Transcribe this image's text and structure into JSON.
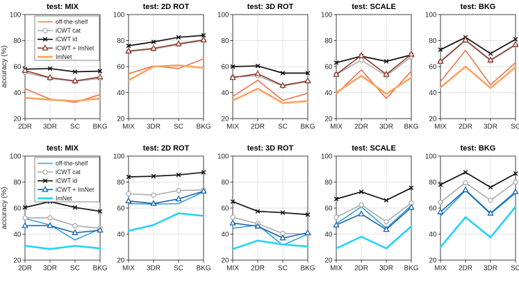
{
  "figure_name": "icwt-transfer-accuracy-figure",
  "axis": {
    "ylim": [
      20,
      100
    ],
    "yticks": [
      20,
      40,
      60,
      80,
      100
    ],
    "grid": true,
    "grid_color": "#e2e2e2",
    "box_color": "#3c3c3c",
    "tick_label_color": "#262626",
    "ylabel": "accuracy (%)"
  },
  "series_styles": {
    "row0": [
      {
        "name": "off-the-shelf",
        "color": "#F4714B",
        "marker": "none",
        "width": 1.6
      },
      {
        "name": "iCWT cat",
        "color": "#AAAAAA",
        "marker": "circle",
        "width": 1.6
      },
      {
        "name": "iCWT id",
        "color": "#111111",
        "marker": "x",
        "width": 1.7
      },
      {
        "name": "iCWT + ImNet",
        "color": "#8E3D2B",
        "marker": "triangle",
        "width": 1.6
      },
      {
        "name": "ImNet",
        "color": "#FCA35F",
        "marker": "none",
        "width": 2.6
      }
    ],
    "row1": [
      {
        "name": "off-the-shelf",
        "color": "#2E9FE0",
        "marker": "none",
        "width": 1.6
      },
      {
        "name": "iCWT cat",
        "color": "#AAAAAA",
        "marker": "circle",
        "width": 1.6
      },
      {
        "name": "iCWT id",
        "color": "#111111",
        "marker": "x",
        "width": 1.7
      },
      {
        "name": "iCWT + ImNet",
        "color": "#1A63AE",
        "marker": "triangle",
        "width": 1.6
      },
      {
        "name": "ImNet",
        "color": "#22D3F7",
        "marker": "none",
        "width": 2.6
      }
    ]
  },
  "chart_data": [
    {
      "type": "line",
      "row": 0,
      "col": 0,
      "title": "test: MIX",
      "ylabel": "accuracy (%)",
      "ylim": [
        20,
        100
      ],
      "grid": true,
      "legend": "inside-top",
      "categories": [
        "2DR",
        "3DR",
        "SC",
        "BKG"
      ],
      "series": [
        {
          "name": "off-the-shelf",
          "values": [
            43,
            35,
            32.5,
            38.5
          ]
        },
        {
          "name": "iCWT cat",
          "values": [
            55.5,
            51,
            48.5,
            51
          ]
        },
        {
          "name": "iCWT id",
          "values": [
            58,
            58.5,
            56,
            56.5
          ]
        },
        {
          "name": "iCWT + ImNet",
          "values": [
            57,
            51.5,
            49,
            52
          ]
        },
        {
          "name": "ImNet",
          "values": [
            36,
            34.5,
            33.5,
            35.5
          ]
        }
      ]
    },
    {
      "type": "line",
      "row": 0,
      "col": 1,
      "title": "test: 2D ROT",
      "ylabel": "",
      "ylim": [
        20,
        100
      ],
      "grid": true,
      "legend": "none",
      "categories": [
        "MIX",
        "3DR",
        "SC",
        "BKG"
      ],
      "series": [
        {
          "name": "off-the-shelf",
          "values": [
            54.5,
            60.5,
            58.5,
            66
          ]
        },
        {
          "name": "iCWT cat",
          "values": [
            71.5,
            73.5,
            77,
            80
          ]
        },
        {
          "name": "iCWT id",
          "values": [
            76,
            79,
            82.5,
            84
          ]
        },
        {
          "name": "iCWT + ImNet",
          "values": [
            72,
            74,
            77.5,
            80.5
          ]
        },
        {
          "name": "ImNet",
          "values": [
            49.5,
            60,
            61,
            59
          ]
        }
      ]
    },
    {
      "type": "line",
      "row": 0,
      "col": 2,
      "title": "test: 3D ROT",
      "ylabel": "",
      "ylim": [
        20,
        100
      ],
      "grid": true,
      "legend": "none",
      "categories": [
        "MIX",
        "2DR",
        "SC",
        "BKG"
      ],
      "series": [
        {
          "name": "off-the-shelf",
          "values": [
            37,
            49.5,
            34,
            39.5
          ]
        },
        {
          "name": "iCWT cat",
          "values": [
            52,
            53,
            45,
            48.5
          ]
        },
        {
          "name": "iCWT id",
          "values": [
            60,
            60.5,
            55,
            55
          ]
        },
        {
          "name": "iCWT + ImNet",
          "values": [
            51.5,
            54.5,
            45.5,
            49
          ]
        },
        {
          "name": "ImNet",
          "values": [
            34,
            43,
            32,
            33.5
          ]
        }
      ]
    },
    {
      "type": "line",
      "row": 0,
      "col": 3,
      "title": "test: SCALE",
      "ylabel": "",
      "ylim": [
        20,
        100
      ],
      "grid": true,
      "legend": "none",
      "categories": [
        "MIX",
        "2DR",
        "3DR",
        "BKG"
      ],
      "series": [
        {
          "name": "off-the-shelf",
          "values": [
            39,
            57.5,
            35.5,
            56.5
          ]
        },
        {
          "name": "iCWT cat",
          "values": [
            54,
            65,
            53,
            67.5
          ]
        },
        {
          "name": "iCWT id",
          "values": [
            63,
            68,
            64,
            69
          ]
        },
        {
          "name": "iCWT + ImNet",
          "values": [
            54,
            68.5,
            54,
            69.5
          ]
        },
        {
          "name": "ImNet",
          "values": [
            40,
            53,
            39,
            51.5
          ]
        }
      ]
    },
    {
      "type": "line",
      "row": 0,
      "col": 4,
      "title": "test: BKG",
      "ylabel": "",
      "ylim": [
        20,
        100
      ],
      "grid": true,
      "legend": "none",
      "categories": [
        "MIX",
        "2DR",
        "3DR",
        "SC"
      ],
      "series": [
        {
          "name": "off-the-shelf",
          "values": [
            48.5,
            72.5,
            46,
            63
          ]
        },
        {
          "name": "iCWT cat",
          "values": [
            63.5,
            80,
            64.5,
            76.5
          ]
        },
        {
          "name": "iCWT id",
          "values": [
            73,
            82.5,
            70,
            81
          ]
        },
        {
          "name": "iCWT + ImNet",
          "values": [
            64,
            80.5,
            65,
            77
          ]
        },
        {
          "name": "ImNet",
          "values": [
            44,
            60,
            43.5,
            59.5
          ]
        }
      ]
    },
    {
      "type": "line",
      "row": 1,
      "col": 0,
      "title": "test: MIX",
      "ylabel": "accuracy (%)",
      "ylim": [
        20,
        100
      ],
      "grid": true,
      "legend": "inside-top",
      "categories": [
        "2DR",
        "3DR",
        "SC",
        "BKG"
      ],
      "series": [
        {
          "name": "off-the-shelf",
          "values": [
            52,
            47,
            35.5,
            44
          ]
        },
        {
          "name": "iCWT cat",
          "values": [
            52.5,
            52.5,
            46.5,
            44.5
          ]
        },
        {
          "name": "iCWT id",
          "values": [
            60.5,
            65,
            60.5,
            57.5
          ]
        },
        {
          "name": "iCWT + ImNet",
          "values": [
            46.5,
            46.5,
            41,
            43
          ]
        },
        {
          "name": "ImNet",
          "values": [
            31,
            28.5,
            31,
            29
          ]
        }
      ]
    },
    {
      "type": "line",
      "row": 1,
      "col": 1,
      "title": "test: 2D ROT",
      "ylabel": "",
      "ylim": [
        20,
        100
      ],
      "grid": true,
      "legend": "none",
      "categories": [
        "MIX",
        "3DR",
        "SC",
        "BKG"
      ],
      "series": [
        {
          "name": "off-the-shelf",
          "values": [
            63.5,
            63,
            63.5,
            72.5
          ]
        },
        {
          "name": "iCWT cat",
          "values": [
            71,
            70,
            73.5,
            74
          ]
        },
        {
          "name": "iCWT id",
          "values": [
            84,
            84.5,
            85.5,
            87.5
          ]
        },
        {
          "name": "iCWT + ImNet",
          "values": [
            65.5,
            63.5,
            67,
            73
          ]
        },
        {
          "name": "ImNet",
          "values": [
            42.5,
            47,
            56,
            54
          ]
        }
      ]
    },
    {
      "type": "line",
      "row": 1,
      "col": 2,
      "title": "test: 3D ROT",
      "ylabel": "",
      "ylim": [
        20,
        100
      ],
      "grid": true,
      "legend": "none",
      "categories": [
        "MIX",
        "2DR",
        "SC",
        "BKG"
      ],
      "series": [
        {
          "name": "off-the-shelf",
          "values": [
            44.5,
            47,
            31.5,
            40
          ]
        },
        {
          "name": "iCWT cat",
          "values": [
            53,
            48,
            40.5,
            40
          ]
        },
        {
          "name": "iCWT id",
          "values": [
            65,
            57.5,
            56.5,
            55
          ]
        },
        {
          "name": "iCWT + ImNet",
          "values": [
            48.5,
            46,
            37,
            41
          ]
        },
        {
          "name": "ImNet",
          "values": [
            28.5,
            35,
            32,
            30.5
          ]
        }
      ]
    },
    {
      "type": "line",
      "row": 1,
      "col": 3,
      "title": "test: SCALE",
      "ylabel": "",
      "ylim": [
        20,
        100
      ],
      "grid": true,
      "legend": "none",
      "categories": [
        "MIX",
        "2DR",
        "3DR",
        "BKG"
      ],
      "series": [
        {
          "name": "off-the-shelf",
          "values": [
            48,
            61,
            44.5,
            62
          ]
        },
        {
          "name": "iCWT cat",
          "values": [
            53,
            62.5,
            49.5,
            64
          ]
        },
        {
          "name": "iCWT id",
          "values": [
            67,
            72.5,
            66,
            75.5
          ]
        },
        {
          "name": "iCWT + ImNet",
          "values": [
            47,
            55.5,
            43.5,
            60.5
          ]
        },
        {
          "name": "ImNet",
          "values": [
            29,
            38,
            29,
            46
          ]
        }
      ]
    },
    {
      "type": "line",
      "row": 1,
      "col": 4,
      "title": "test: BKG",
      "ylabel": "",
      "ylim": [
        20,
        100
      ],
      "grid": true,
      "legend": "none",
      "categories": [
        "MIX",
        "2DR",
        "3DR",
        "SC"
      ],
      "series": [
        {
          "name": "off-the-shelf",
          "values": [
            54,
            73.5,
            55.5,
            71.5
          ]
        },
        {
          "name": "iCWT cat",
          "values": [
            64.5,
            79.5,
            66,
            80
          ]
        },
        {
          "name": "iCWT id",
          "values": [
            78,
            87.5,
            76,
            86.5
          ]
        },
        {
          "name": "iCWT + ImNet",
          "values": [
            57,
            74,
            56,
            72.5
          ]
        },
        {
          "name": "ImNet",
          "values": [
            30,
            53,
            37.5,
            61
          ]
        }
      ]
    }
  ]
}
